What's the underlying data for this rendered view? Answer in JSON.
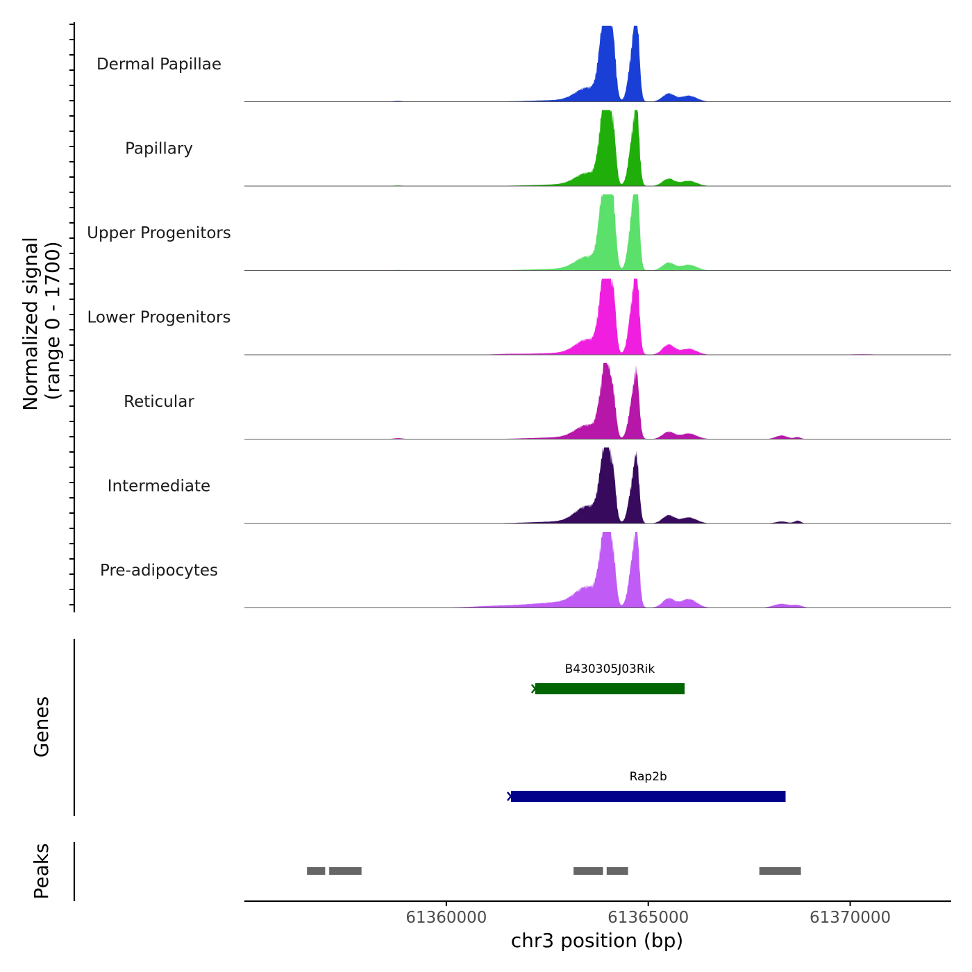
{
  "chart_data": {
    "type": "area",
    "title": "",
    "region": {
      "chrom": "chr3",
      "start": 61355000,
      "end": 61372500
    },
    "xlabel": "chr3 position (bp)",
    "x_ticks": [
      61360000,
      61365000,
      61370000
    ],
    "x_tick_labels": [
      "61360000",
      "61365000",
      "61370000"
    ],
    "ylabel": "Normalized signal\n(range 0 - 1700)",
    "ylabel_line1": "Normalized signal",
    "ylabel_line2": "(range 0 - 1700)",
    "ylim": [
      0,
      1700
    ],
    "tracks": [
      {
        "name": "Dermal Papillae",
        "color": "#1a3fd6",
        "peaks": [
          [
            61358800,
            20,
            120
          ],
          [
            61362900,
            40,
            800
          ],
          [
            61363500,
            320,
            300
          ],
          [
            61363880,
            1550,
            110
          ],
          [
            61363980,
            1650,
            70
          ],
          [
            61364130,
            1400,
            70
          ],
          [
            61364620,
            1300,
            100
          ],
          [
            61364720,
            1450,
            60
          ],
          [
            61365500,
            200,
            150
          ],
          [
            61366000,
            150,
            200
          ]
        ]
      },
      {
        "name": "Papillary",
        "color": "#1fae0a",
        "peaks": [
          [
            61358800,
            15,
            120
          ],
          [
            61362900,
            40,
            800
          ],
          [
            61363500,
            300,
            300
          ],
          [
            61363880,
            1500,
            110
          ],
          [
            61363980,
            1560,
            70
          ],
          [
            61364130,
            1350,
            70
          ],
          [
            61364620,
            1200,
            100
          ],
          [
            61364720,
            1300,
            60
          ],
          [
            61365500,
            180,
            150
          ],
          [
            61366000,
            130,
            200
          ]
        ]
      },
      {
        "name": "Upper Progenitors",
        "color": "#5be06b",
        "peaks": [
          [
            61358800,
            15,
            120
          ],
          [
            61362900,
            40,
            800
          ],
          [
            61363500,
            320,
            300
          ],
          [
            61363880,
            1650,
            110
          ],
          [
            61363980,
            1750,
            70
          ],
          [
            61364130,
            1550,
            70
          ],
          [
            61364620,
            1450,
            100
          ],
          [
            61364720,
            1500,
            60
          ],
          [
            61365500,
            190,
            150
          ],
          [
            61366000,
            140,
            200
          ]
        ]
      },
      {
        "name": "Lower Progenitors",
        "color": "#f01fe0",
        "peaks": [
          [
            61361500,
            15,
            300
          ],
          [
            61362900,
            45,
            800
          ],
          [
            61363500,
            350,
            300
          ],
          [
            61363880,
            1500,
            110
          ],
          [
            61363980,
            1600,
            70
          ],
          [
            61364130,
            1450,
            70
          ],
          [
            61364620,
            1300,
            100
          ],
          [
            61364720,
            1350,
            60
          ],
          [
            61365500,
            250,
            150
          ],
          [
            61366000,
            150,
            200
          ],
          [
            61370300,
            15,
            300
          ]
        ]
      },
      {
        "name": "Reticular",
        "color": "#b617a8",
        "peaks": [
          [
            61358800,
            25,
            120
          ],
          [
            61362900,
            45,
            800
          ],
          [
            61363500,
            320,
            300
          ],
          [
            61363880,
            1150,
            110
          ],
          [
            61363980,
            1200,
            70
          ],
          [
            61364130,
            1050,
            70
          ],
          [
            61364620,
            1000,
            100
          ],
          [
            61364720,
            1050,
            60
          ],
          [
            61365500,
            180,
            150
          ],
          [
            61366000,
            140,
            200
          ],
          [
            61368300,
            90,
            150
          ],
          [
            61368700,
            50,
            80
          ]
        ]
      },
      {
        "name": "Intermediate",
        "color": "#380a5e",
        "peaks": [
          [
            61362900,
            50,
            800
          ],
          [
            61363500,
            400,
            300
          ],
          [
            61363880,
            1250,
            110
          ],
          [
            61363980,
            1350,
            70
          ],
          [
            61364130,
            1150,
            70
          ],
          [
            61364620,
            1000,
            100
          ],
          [
            61364720,
            1050,
            60
          ],
          [
            61365500,
            200,
            150
          ],
          [
            61366000,
            150,
            200
          ],
          [
            61368300,
            50,
            150
          ],
          [
            61368700,
            70,
            80
          ]
        ]
      },
      {
        "name": "Pre-adipocytes",
        "color": "#c05cf5",
        "peaks": [
          [
            61361200,
            40,
            600
          ],
          [
            61362900,
            140,
            800
          ],
          [
            61363500,
            420,
            300
          ],
          [
            61363880,
            1300,
            110
          ],
          [
            61363980,
            1400,
            70
          ],
          [
            61364130,
            1200,
            70
          ],
          [
            61364620,
            1150,
            100
          ],
          [
            61364720,
            1250,
            60
          ],
          [
            61365500,
            230,
            150
          ],
          [
            61366000,
            220,
            200
          ],
          [
            61368300,
            100,
            200
          ],
          [
            61368700,
            60,
            120
          ]
        ]
      }
    ],
    "genes_label": "Genes",
    "genes": [
      {
        "name": "B430305J03Rik",
        "start": 61362200,
        "end": 61365900,
        "color": "#006400"
      },
      {
        "name": "Rap2b",
        "start": 61361600,
        "end": 61368400,
        "color": "#00008b"
      }
    ],
    "peaks_label": "Peaks",
    "peak_regions": [
      {
        "start": 61356550,
        "end": 61357000
      },
      {
        "start": 61357100,
        "end": 61357900
      },
      {
        "start": 61363150,
        "end": 61363880
      },
      {
        "start": 61363970,
        "end": 61364500
      },
      {
        "start": 61367750,
        "end": 61368780
      }
    ],
    "peak_color": "#666666"
  }
}
